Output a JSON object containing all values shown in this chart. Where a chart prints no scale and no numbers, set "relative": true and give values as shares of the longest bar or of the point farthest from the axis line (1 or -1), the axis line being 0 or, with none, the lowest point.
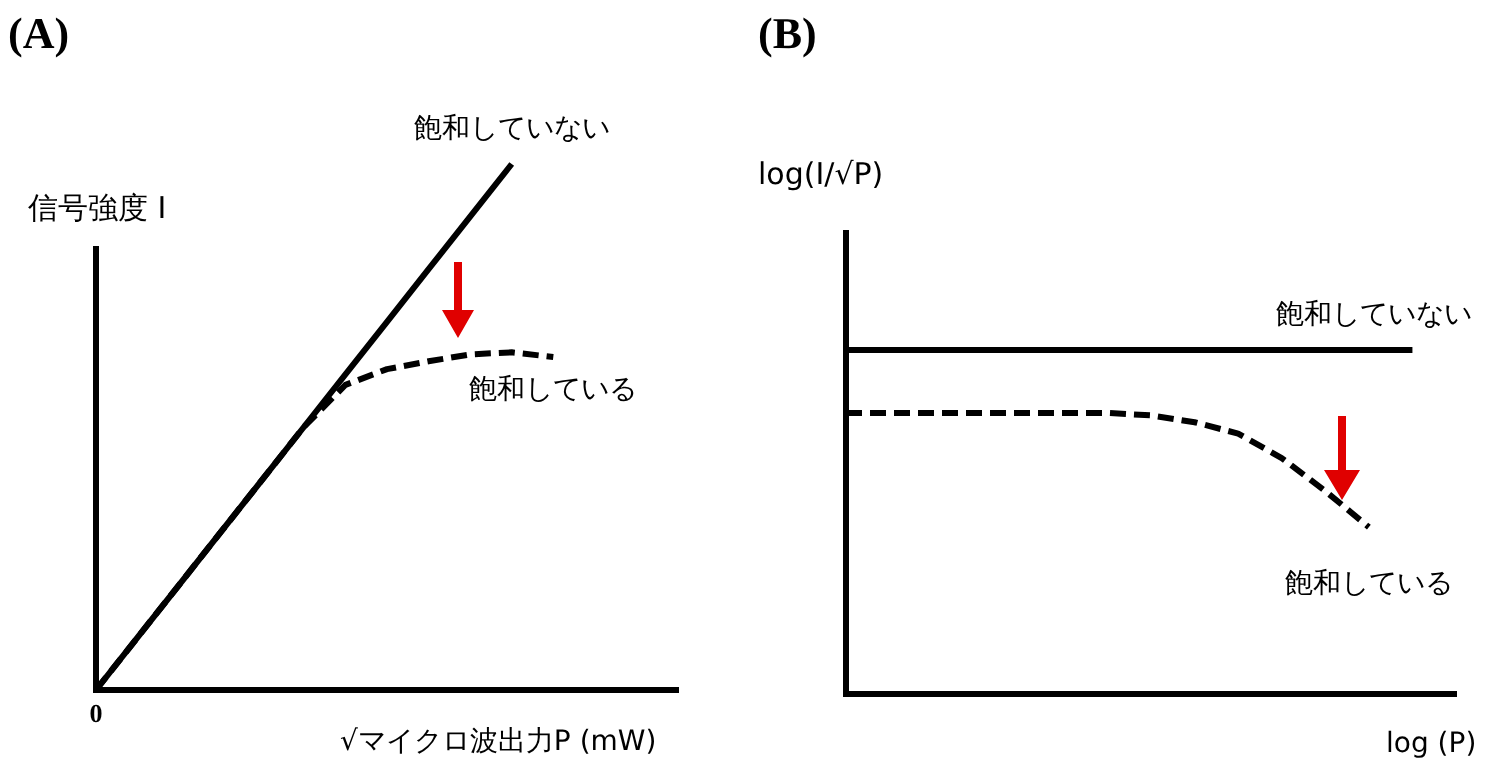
{
  "chart_data": [
    {
      "type": "line",
      "title": "(A)",
      "xlabel": "√マイクロ波出力P (mW)",
      "ylabel": "信号強度 I",
      "relative": true,
      "marker": "none",
      "grid": false,
      "legend": false,
      "tick_labels": false,
      "annotations": [
        "0"
      ],
      "categories": [
        null,
        null,
        null,
        null,
        null,
        null,
        null,
        null,
        null,
        null,
        null,
        null,
        null,
        null,
        null
      ],
      "series": [
        {
          "name": "飽和していない",
          "color": "#000000",
          "line_style": "solid",
          "values": [
            0,
            0.1,
            0.2,
            0.3,
            0.4,
            0.5,
            0.6,
            0.7,
            0.8,
            0.9,
            1,
            null,
            null,
            null,
            null
          ]
        },
        {
          "name": "飽和している",
          "color": "#000000",
          "line_style": "dashed",
          "values": [
            0,
            0.1,
            0.2,
            0.3,
            0.4,
            0.5,
            0.58,
            0.61,
            0.625,
            0.638,
            0.642,
            0.633,
            null,
            null,
            null
          ]
        }
      ]
    },
    {
      "type": "line",
      "title": "(B)",
      "xlabel": "log (P)",
      "ylabel": "log(I/√P)",
      "relative": true,
      "marker": "none",
      "grid": false,
      "legend": false,
      "tick_labels": false,
      "categories": [
        null,
        null,
        null,
        null,
        null,
        null,
        null,
        null,
        null,
        null,
        null,
        null,
        null,
        null,
        null
      ],
      "series": [
        {
          "name": "飽和していない",
          "color": "#000000",
          "line_style": "solid",
          "values": [
            1,
            1,
            1,
            1,
            1,
            1,
            1,
            1,
            1,
            1,
            1,
            1,
            1,
            1,
            null
          ]
        },
        {
          "name": "飽和している",
          "color": "#000000",
          "line_style": "dashed",
          "values": [
            0.817,
            0.817,
            0.817,
            0.817,
            0.817,
            0.817,
            0.817,
            0.81,
            0.79,
            0.757,
            0.686,
            0.59,
            0.485,
            null,
            null
          ]
        }
      ]
    }
  ]
}
